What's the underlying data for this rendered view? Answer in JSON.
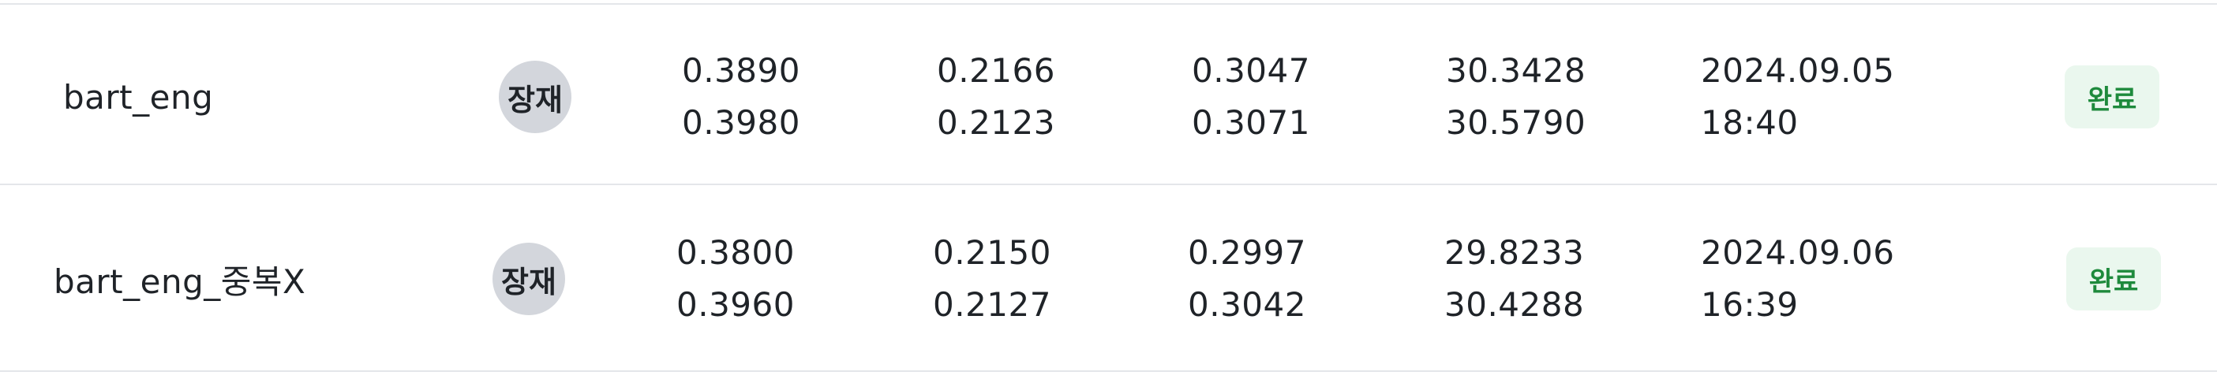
{
  "rows": [
    {
      "name": "bart_eng",
      "avatar": "장재",
      "metric1": [
        "0.3890",
        "0.3980"
      ],
      "metric2": [
        "0.2166",
        "0.2123"
      ],
      "metric3": [
        "0.3047",
        "0.3071"
      ],
      "metric4": [
        "30.3428",
        "30.5790"
      ],
      "date": "2024.09.05",
      "time": "18:40",
      "status": "완료"
    },
    {
      "name": "bart_eng_중복X",
      "avatar": "장재",
      "metric1": [
        "0.3800",
        "0.3960"
      ],
      "metric2": [
        "0.2150",
        "0.2127"
      ],
      "metric3": [
        "0.2997",
        "0.3042"
      ],
      "metric4": [
        "29.8233",
        "30.4288"
      ],
      "date": "2024.09.06",
      "time": "16:39",
      "status": "완료"
    }
  ],
  "colors": {
    "status_bg": "#eaf7ee",
    "status_text": "#1e8a3c",
    "avatar_bg": "#d3d6dc",
    "divider": "#e4e6ea"
  }
}
